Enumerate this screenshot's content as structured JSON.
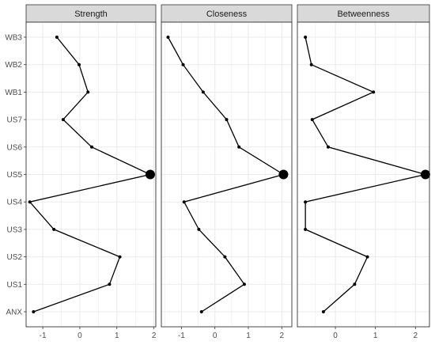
{
  "chart_data": [
    {
      "type": "line",
      "title": "Strength",
      "categories": [
        "ANX",
        "US1",
        "US2",
        "US3",
        "US4",
        "US5",
        "US6",
        "US7",
        "WB1",
        "WB2",
        "WB3"
      ],
      "values": [
        -1.25,
        0.8,
        1.08,
        -0.7,
        -1.35,
        1.9,
        0.32,
        -0.45,
        0.22,
        -0.02,
        -0.62
      ],
      "xlim": [
        -1.45,
        2.05
      ],
      "xticks": [
        -1,
        0,
        1,
        2
      ],
      "tick_labels": [
        "-1",
        "0",
        "1",
        "2"
      ],
      "highlight_category": "US5",
      "grid": true
    },
    {
      "type": "line",
      "title": "Closeness",
      "categories": [
        "ANX",
        "US1",
        "US2",
        "US3",
        "US4",
        "US5",
        "US6",
        "US7",
        "WB1",
        "WB2",
        "WB3"
      ],
      "values": [
        -0.4,
        0.88,
        0.3,
        -0.48,
        -0.92,
        2.05,
        0.72,
        0.35,
        -0.35,
        -0.95,
        -1.4
      ],
      "xlim": [
        -1.6,
        2.3
      ],
      "xticks": [
        -1,
        0,
        1,
        2
      ],
      "tick_labels": [
        "-1",
        "0",
        "1",
        "2"
      ],
      "highlight_category": "US5",
      "grid": true
    },
    {
      "type": "line",
      "title": "Betweenness",
      "categories": [
        "ANX",
        "US1",
        "US2",
        "US3",
        "US4",
        "US5",
        "US6",
        "US7",
        "WB1",
        "WB2",
        "WB3"
      ],
      "values": [
        -0.3,
        0.48,
        0.8,
        -0.75,
        -0.75,
        2.25,
        -0.18,
        -0.58,
        0.95,
        -0.6,
        -0.75
      ],
      "xlim": [
        -0.95,
        2.35
      ],
      "xticks": [
        0,
        1,
        2
      ],
      "tick_labels": [
        "0",
        "1",
        "2"
      ],
      "highlight_category": "US5",
      "grid": true
    }
  ],
  "colors": {
    "strip_fill": "#d9d9d9",
    "frame": "#333333",
    "grid": "#ebebeb",
    "line": "#000000",
    "tick_text": "#4d4d4d"
  }
}
